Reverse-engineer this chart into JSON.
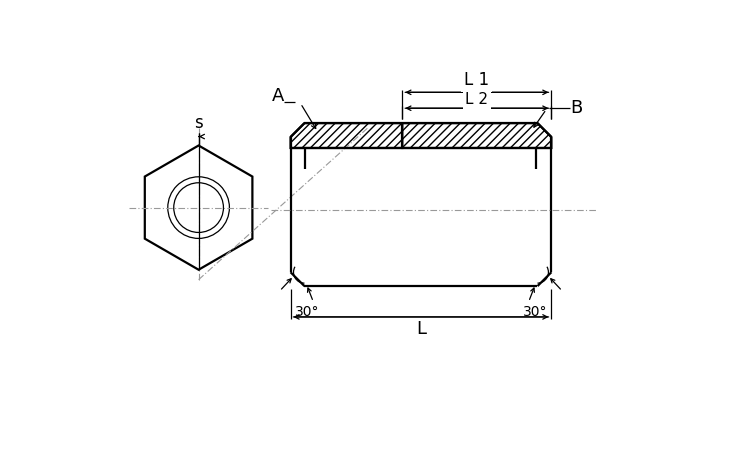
{
  "bg_color": "#ffffff",
  "line_color": "#000000",
  "labels": {
    "s": "s",
    "A": "A",
    "B": "B",
    "L": "L",
    "L1": "L 1",
    "L2": "L 2"
  },
  "angle_label": "30°",
  "figsize": [
    7.5,
    4.5
  ],
  "dpi": 100
}
